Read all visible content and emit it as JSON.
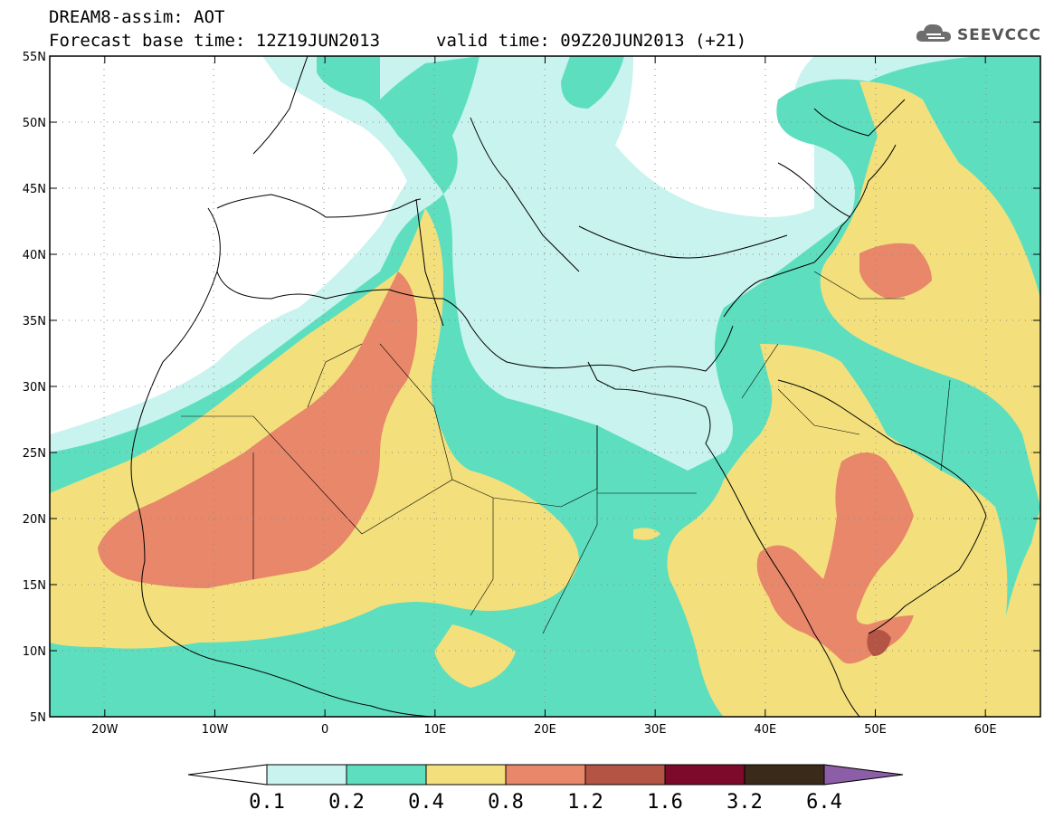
{
  "title": {
    "line1": "DREAM8-assim: AOT",
    "line2": "Forecast base time: 12Z19JUN2013",
    "line3": "valid time: 09Z20JUN2013 (+21)"
  },
  "logo": {
    "text": "SEEVCCC",
    "icon": "cloud-icon"
  },
  "map": {
    "region": "North Africa, Europe, Middle East",
    "lat_range": [
      5,
      55
    ],
    "lon_range": [
      -25,
      65
    ],
    "lat_ticks": [
      "5N",
      "10N",
      "15N",
      "20N",
      "25N",
      "30N",
      "35N",
      "40N",
      "45N",
      "50N",
      "55N"
    ],
    "lon_ticks": [
      "20W",
      "10W",
      "0",
      "10E",
      "20E",
      "30E",
      "40E",
      "50E",
      "60E"
    ],
    "grid": "dotted"
  },
  "colorbar": {
    "labels": [
      "0.1",
      "0.2",
      "0.4",
      "0.8",
      "1.2",
      "1.6",
      "3.2",
      "6.4"
    ],
    "colors": [
      "#c8f3ee",
      "#5ddfbf",
      "#f3e07c",
      "#e8876a",
      "#b45444",
      "#7d0a2a",
      "#3a2a1a",
      "#8c5ea8"
    ]
  }
}
